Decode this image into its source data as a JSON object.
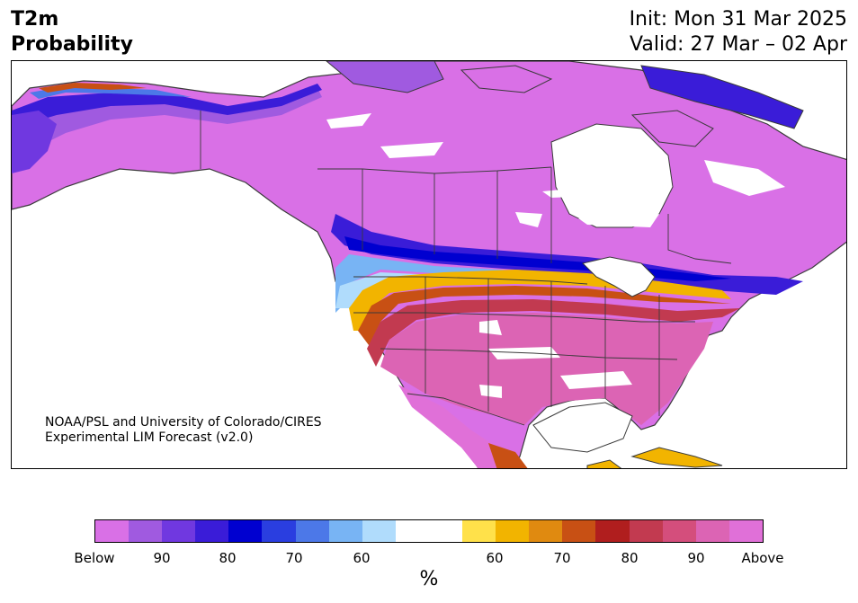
{
  "title": {
    "left_line1": "T2m",
    "left_line2": "Probability",
    "right_line1": "Init: Mon 31 Mar 2025",
    "right_line2": "Valid: 27 Mar – 02 Apr"
  },
  "credit": {
    "line1": "NOAA/PSL and University of Colorado/CIRES",
    "line2": "Experimental LIM Forecast (v2.0)"
  },
  "colorbar": {
    "colors": [
      "#d970e6",
      "#a05ae0",
      "#7038e0",
      "#3a1cd8",
      "#0000d0",
      "#2a3ee0",
      "#4c78e8",
      "#78b4f4",
      "#b0dcfc",
      "#ffffff",
      "#ffffff",
      "#ffe14a",
      "#f2b400",
      "#e08a10",
      "#c85014",
      "#b01e1e",
      "#c23a50",
      "#d44e7c",
      "#dc64b4",
      "#e070d8"
    ],
    "tick_labels": [
      "Below",
      "90",
      "80",
      "70",
      "60",
      "60",
      "70",
      "80",
      "90",
      "Above"
    ],
    "unit": "%"
  },
  "map_colors": {
    "below_extreme": "#d970e6",
    "above_extreme": "#e070d8",
    "coast": "#3a3a3a"
  }
}
